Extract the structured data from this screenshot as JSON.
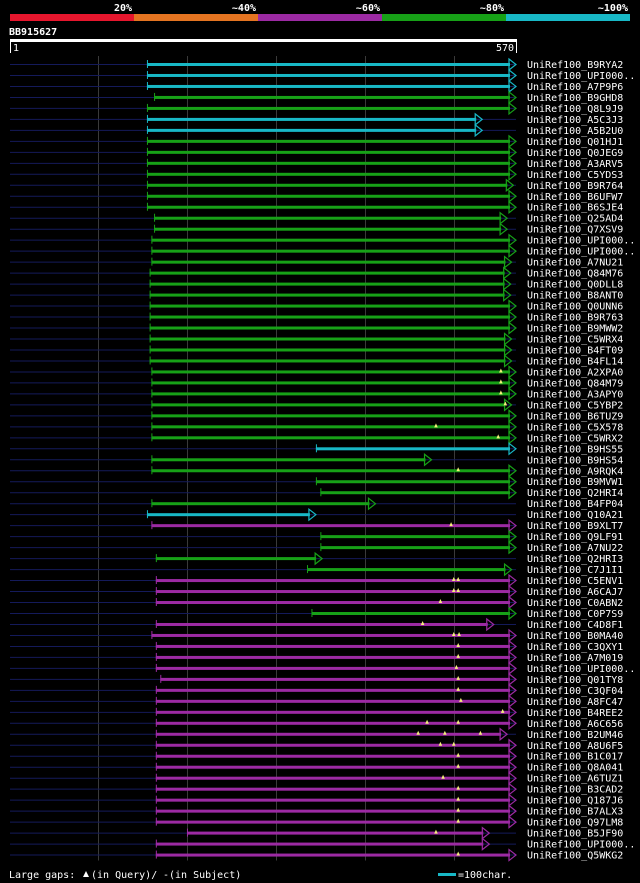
{
  "chart_data": {
    "type": "alignment",
    "title": "BB915627",
    "query_length": 570,
    "ruler": {
      "start_label": "1",
      "end_label": "570"
    },
    "identity_legend": [
      {
        "label": "20%",
        "color": "#e6162d"
      },
      {
        "label": "~40%",
        "color": "#e47421"
      },
      {
        "label": "~60%",
        "color": "#9c2aa3"
      },
      {
        "label": "~80%",
        "color": "#17a117"
      },
      {
        "label": "~100%",
        "color": "#18b8c6"
      }
    ],
    "footer": {
      "gaps_text": "Large gaps: ",
      "in_query_text": "(in Query)/",
      "dash": "-",
      "in_subject_text": " (in Subject)",
      "scale_text": "=100char."
    },
    "hits": [
      {
        "label": "UniRef100_B9RYA2",
        "start": 155,
        "end": 570,
        "identity": "~100%",
        "qgaps": []
      },
      {
        "label": "UniRef100_UPI000..",
        "start": 155,
        "end": 570,
        "identity": "~100%",
        "qgaps": []
      },
      {
        "label": "UniRef100_A7P9P6",
        "start": 155,
        "end": 570,
        "identity": "~100%",
        "qgaps": []
      },
      {
        "label": "UniRef100_B9GHD8",
        "start": 163,
        "end": 570,
        "identity": "~80%",
        "qgaps": []
      },
      {
        "label": "UniRef100_Q8L9J9",
        "start": 155,
        "end": 570,
        "identity": "~80%",
        "qgaps": []
      },
      {
        "label": "UniRef100_A5C3J3",
        "start": 155,
        "end": 532,
        "identity": "~100%",
        "qgaps": []
      },
      {
        "label": "UniRef100_A5B2U0",
        "start": 155,
        "end": 532,
        "identity": "~100%",
        "qgaps": []
      },
      {
        "label": "UniRef100_Q01HJ1",
        "start": 155,
        "end": 570,
        "identity": "~80%",
        "qgaps": []
      },
      {
        "label": "UniRef100_Q0JEG9",
        "start": 155,
        "end": 570,
        "identity": "~80%",
        "qgaps": []
      },
      {
        "label": "UniRef100_A3ARV5",
        "start": 155,
        "end": 570,
        "identity": "~80%",
        "qgaps": []
      },
      {
        "label": "UniRef100_C5YDS3",
        "start": 155,
        "end": 570,
        "identity": "~80%",
        "qgaps": []
      },
      {
        "label": "UniRef100_B9R764",
        "start": 155,
        "end": 567,
        "identity": "~80%",
        "qgaps": []
      },
      {
        "label": "UniRef100_B6UFW7",
        "start": 155,
        "end": 570,
        "identity": "~80%",
        "qgaps": []
      },
      {
        "label": "UniRef100_B6SJE4",
        "start": 155,
        "end": 570,
        "identity": "~80%",
        "qgaps": []
      },
      {
        "label": "UniRef100_Q25AD4",
        "start": 163,
        "end": 560,
        "identity": "~80%",
        "qgaps": []
      },
      {
        "label": "UniRef100_Q7XSV9",
        "start": 163,
        "end": 560,
        "identity": "~80%",
        "qgaps": []
      },
      {
        "label": "UniRef100_UPI000..",
        "start": 160,
        "end": 570,
        "identity": "~80%",
        "qgaps": []
      },
      {
        "label": "UniRef100_UPI000..",
        "start": 160,
        "end": 570,
        "identity": "~80%",
        "qgaps": []
      },
      {
        "label": "UniRef100_A7NU21",
        "start": 160,
        "end": 565,
        "identity": "~80%",
        "qgaps": []
      },
      {
        "label": "UniRef100_Q84M76",
        "start": 158,
        "end": 564,
        "identity": "~80%",
        "qgaps": []
      },
      {
        "label": "UniRef100_Q0DLL8",
        "start": 158,
        "end": 564,
        "identity": "~80%",
        "qgaps": []
      },
      {
        "label": "UniRef100_B8ANT0",
        "start": 158,
        "end": 564,
        "identity": "~80%",
        "qgaps": []
      },
      {
        "label": "UniRef100_Q0UNN6",
        "start": 158,
        "end": 570,
        "identity": "~80%",
        "qgaps": []
      },
      {
        "label": "UniRef100_B9R763",
        "start": 158,
        "end": 570,
        "identity": "~80%",
        "qgaps": []
      },
      {
        "label": "UniRef100_B9MWW2",
        "start": 158,
        "end": 570,
        "identity": "~80%",
        "qgaps": []
      },
      {
        "label": "UniRef100_C5WRX4",
        "start": 158,
        "end": 565,
        "identity": "~80%",
        "qgaps": []
      },
      {
        "label": "UniRef100_B4FT09",
        "start": 158,
        "end": 565,
        "identity": "~80%",
        "qgaps": []
      },
      {
        "label": "UniRef100_B4FL14",
        "start": 158,
        "end": 565,
        "identity": "~80%",
        "qgaps": []
      },
      {
        "label": "UniRef100_A2XPA0",
        "start": 160,
        "end": 570,
        "identity": "~80%",
        "qgaps": [
          553
        ]
      },
      {
        "label": "UniRef100_Q84M79",
        "start": 160,
        "end": 570,
        "identity": "~80%",
        "qgaps": [
          553
        ]
      },
      {
        "label": "UniRef100_A3APY0",
        "start": 160,
        "end": 570,
        "identity": "~80%",
        "qgaps": [
          553
        ]
      },
      {
        "label": "UniRef100_C5YBP2",
        "start": 160,
        "end": 565,
        "identity": "~80%",
        "qgaps": [
          558
        ]
      },
      {
        "label": "UniRef100_B6TUZ9",
        "start": 160,
        "end": 570,
        "identity": "~80%",
        "qgaps": []
      },
      {
        "label": "UniRef100_C5X578",
        "start": 160,
        "end": 570,
        "identity": "~80%",
        "qgaps": [
          480
        ]
      },
      {
        "label": "UniRef100_C5WRX2",
        "start": 160,
        "end": 570,
        "identity": "~80%",
        "qgaps": [
          550
        ]
      },
      {
        "label": "UniRef100_B9HS55",
        "start": 345,
        "end": 570,
        "identity": "~100%",
        "qgaps": []
      },
      {
        "label": "UniRef100_B9HS54",
        "start": 160,
        "end": 475,
        "identity": "~80%",
        "qgaps": []
      },
      {
        "label": "UniRef100_A9RQK4",
        "start": 160,
        "end": 570,
        "identity": "~80%",
        "qgaps": [
          505
        ]
      },
      {
        "label": "UniRef100_B9MVW1",
        "start": 345,
        "end": 570,
        "identity": "~80%",
        "qgaps": []
      },
      {
        "label": "UniRef100_Q2HRI4",
        "start": 350,
        "end": 570,
        "identity": "~80%",
        "qgaps": []
      },
      {
        "label": "UniRef100_B4FP04",
        "start": 160,
        "end": 412,
        "identity": "~80%",
        "qgaps": []
      },
      {
        "label": "UniRef100_Q10A21",
        "start": 155,
        "end": 345,
        "identity": "~100%",
        "qgaps": []
      },
      {
        "label": "UniRef100_B9XLT7",
        "start": 160,
        "end": 570,
        "identity": "~60%",
        "qgaps": [
          497
        ]
      },
      {
        "label": "UniRef100_Q9LF91",
        "start": 350,
        "end": 570,
        "identity": "~80%",
        "qgaps": []
      },
      {
        "label": "UniRef100_A7NU22",
        "start": 350,
        "end": 570,
        "identity": "~80%",
        "qgaps": []
      },
      {
        "label": "UniRef100_Q2HRI3",
        "start": 165,
        "end": 352,
        "identity": "~80%",
        "qgaps": []
      },
      {
        "label": "UniRef100_C7J1I1",
        "start": 335,
        "end": 565,
        "identity": "~80%",
        "qgaps": []
      },
      {
        "label": "UniRef100_C5ENV1",
        "start": 165,
        "end": 570,
        "identity": "~60%",
        "qgaps": [
          500,
          505
        ]
      },
      {
        "label": "UniRef100_A6CAJ7",
        "start": 165,
        "end": 570,
        "identity": "~60%",
        "qgaps": [
          500,
          505
        ]
      },
      {
        "label": "UniRef100_C0ABN2",
        "start": 165,
        "end": 570,
        "identity": "~60%",
        "qgaps": [
          485
        ]
      },
      {
        "label": "UniRef100_C0P7S9",
        "start": 340,
        "end": 570,
        "identity": "~80%",
        "qgaps": []
      },
      {
        "label": "UniRef100_C4D8F1",
        "start": 165,
        "end": 545,
        "identity": "~60%",
        "qgaps": [
          465
        ]
      },
      {
        "label": "UniRef100_B0MA40",
        "start": 160,
        "end": 570,
        "identity": "~60%",
        "qgaps": [
          500,
          506
        ]
      },
      {
        "label": "UniRef100_C3QXY1",
        "start": 165,
        "end": 570,
        "identity": "~60%",
        "qgaps": [
          505
        ]
      },
      {
        "label": "UniRef100_A7M019",
        "start": 165,
        "end": 570,
        "identity": "~60%",
        "qgaps": [
          505
        ]
      },
      {
        "label": "UniRef100_UPI000..",
        "start": 165,
        "end": 570,
        "identity": "~60%",
        "qgaps": [
          503
        ]
      },
      {
        "label": "UniRef100_Q01TY8",
        "start": 170,
        "end": 570,
        "identity": "~60%",
        "qgaps": [
          505
        ]
      },
      {
        "label": "UniRef100_C3QF04",
        "start": 165,
        "end": 570,
        "identity": "~60%",
        "qgaps": [
          505
        ]
      },
      {
        "label": "UniRef100_A8FC47",
        "start": 165,
        "end": 570,
        "identity": "~60%",
        "qgaps": [
          508
        ]
      },
      {
        "label": "UniRef100_B4REE2",
        "start": 165,
        "end": 570,
        "identity": "~60%",
        "qgaps": [
          555
        ]
      },
      {
        "label": "UniRef100_A6C656",
        "start": 165,
        "end": 570,
        "identity": "~60%",
        "qgaps": [
          470,
          505
        ]
      },
      {
        "label": "UniRef100_B2UM46",
        "start": 165,
        "end": 560,
        "identity": "~60%",
        "qgaps": [
          460,
          490,
          530
        ]
      },
      {
        "label": "UniRef100_A8U6F5",
        "start": 165,
        "end": 570,
        "identity": "~60%",
        "qgaps": [
          485,
          500
        ]
      },
      {
        "label": "UniRef100_B1C017",
        "start": 165,
        "end": 570,
        "identity": "~60%",
        "qgaps": [
          505
        ]
      },
      {
        "label": "UniRef100_Q8A041",
        "start": 165,
        "end": 570,
        "identity": "~60%",
        "qgaps": [
          505
        ]
      },
      {
        "label": "UniRef100_A6TUZ1",
        "start": 165,
        "end": 570,
        "identity": "~60%",
        "qgaps": [
          488
        ]
      },
      {
        "label": "UniRef100_B3CAD2",
        "start": 165,
        "end": 570,
        "identity": "~60%",
        "qgaps": [
          505
        ]
      },
      {
        "label": "UniRef100_Q187J6",
        "start": 165,
        "end": 570,
        "identity": "~60%",
        "qgaps": [
          505
        ]
      },
      {
        "label": "UniRef100_B7ALX3",
        "start": 165,
        "end": 570,
        "identity": "~60%",
        "qgaps": [
          505
        ]
      },
      {
        "label": "UniRef100_Q97LM8",
        "start": 165,
        "end": 570,
        "identity": "~60%",
        "qgaps": [
          505
        ]
      },
      {
        "label": "UniRef100_B5JF90",
        "start": 200,
        "end": 540,
        "identity": "~60%",
        "qgaps": [
          480
        ]
      },
      {
        "label": "UniRef100_UPI000..",
        "start": 165,
        "end": 540,
        "identity": "~60%",
        "qgaps": []
      },
      {
        "label": "UniRef100_Q5WKG2",
        "start": 165,
        "end": 570,
        "identity": "~60%",
        "qgaps": [
          505
        ]
      }
    ]
  }
}
